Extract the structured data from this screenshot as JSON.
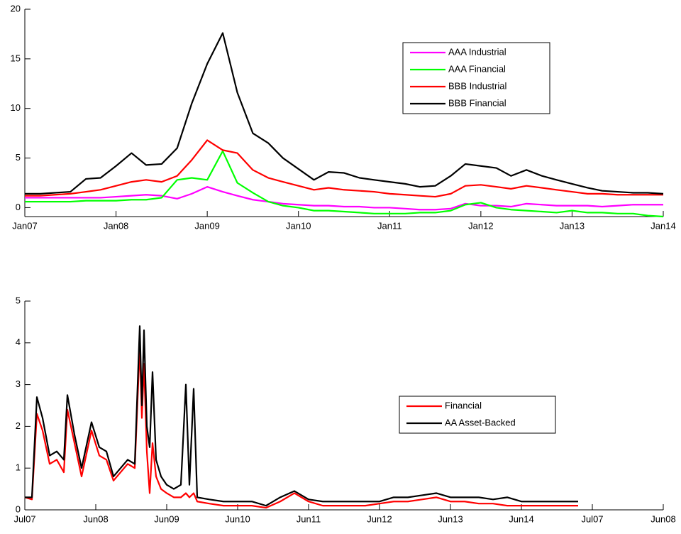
{
  "chart_data": [
    {
      "type": "line",
      "x": [
        2007,
        2007.17,
        2007.33,
        2007.5,
        2007.67,
        2007.83,
        2008,
        2008.17,
        2008.33,
        2008.5,
        2008.67,
        2008.83,
        2009,
        2009.17,
        2009.33,
        2009.5,
        2009.67,
        2009.83,
        2010,
        2010.17,
        2010.33,
        2010.5,
        2010.67,
        2010.83,
        2011,
        2011.17,
        2011.33,
        2011.5,
        2011.67,
        2011.83,
        2012,
        2012.17,
        2012.33,
        2012.5,
        2012.67,
        2012.83,
        2013,
        2013.17,
        2013.33,
        2013.5,
        2013.67,
        2013.83,
        2014
      ],
      "series": [
        {
          "name": "AAA Industrial",
          "color": "#ff00ff",
          "values": [
            1.0,
            1.0,
            1.0,
            1.0,
            1.0,
            1.0,
            1.1,
            1.2,
            1.3,
            1.2,
            0.9,
            1.4,
            2.1,
            1.6,
            1.2,
            0.8,
            0.6,
            0.4,
            0.3,
            0.2,
            0.2,
            0.1,
            0.1,
            0.0,
            0.0,
            -0.1,
            -0.2,
            -0.2,
            -0.1,
            0.4,
            0.2,
            0.2,
            0.1,
            0.4,
            0.3,
            0.2,
            0.2,
            0.2,
            0.1,
            0.2,
            0.3,
            0.3,
            0.3
          ]
        },
        {
          "name": "AAA Financial",
          "color": "#00ff00",
          "values": [
            0.6,
            0.6,
            0.6,
            0.6,
            0.7,
            0.7,
            0.7,
            0.8,
            0.8,
            1.0,
            2.8,
            3.0,
            2.8,
            5.7,
            2.5,
            1.5,
            0.6,
            0.2,
            0.0,
            -0.3,
            -0.3,
            -0.4,
            -0.5,
            -0.6,
            -0.6,
            -0.6,
            -0.5,
            -0.5,
            -0.3,
            0.3,
            0.5,
            0.0,
            -0.2,
            -0.3,
            -0.4,
            -0.5,
            -0.3,
            -0.5,
            -0.5,
            -0.6,
            -0.6,
            -0.8,
            -0.9
          ]
        },
        {
          "name": "BBB Industrial",
          "color": "#ff0000",
          "values": [
            1.2,
            1.2,
            1.3,
            1.4,
            1.6,
            1.8,
            2.2,
            2.6,
            2.8,
            2.6,
            3.2,
            4.8,
            6.8,
            5.8,
            5.5,
            3.8,
            3.0,
            2.6,
            2.2,
            1.8,
            2.0,
            1.8,
            1.7,
            1.6,
            1.4,
            1.3,
            1.2,
            1.1,
            1.4,
            2.2,
            2.3,
            2.1,
            1.9,
            2.2,
            2.0,
            1.8,
            1.6,
            1.4,
            1.4,
            1.3,
            1.3,
            1.3,
            1.3
          ]
        },
        {
          "name": "BBB Financial",
          "color": "#000000",
          "values": [
            1.4,
            1.4,
            1.5,
            1.6,
            2.9,
            3.0,
            4.2,
            5.5,
            4.3,
            4.4,
            6.0,
            10.5,
            14.5,
            17.6,
            11.6,
            7.5,
            6.5,
            5.0,
            3.9,
            2.8,
            3.6,
            3.5,
            3.0,
            2.8,
            2.6,
            2.4,
            2.1,
            2.2,
            3.2,
            4.4,
            4.2,
            4.0,
            3.2,
            3.8,
            3.2,
            2.8,
            2.4,
            2.0,
            1.7,
            1.6,
            1.5,
            1.5,
            1.4
          ]
        }
      ],
      "xlim": [
        2007,
        2014
      ],
      "xticks": [
        {
          "value": 2007,
          "label": "Jan07"
        },
        {
          "value": 2008,
          "label": "Jan08"
        },
        {
          "value": 2009,
          "label": "Jan09"
        },
        {
          "value": 2010,
          "label": "Jan10"
        },
        {
          "value": 2011,
          "label": "Jan11"
        },
        {
          "value": 2012,
          "label": "Jan12"
        },
        {
          "value": 2013,
          "label": "Jan13"
        },
        {
          "value": 2014,
          "label": "Jan14"
        }
      ],
      "ylim": [
        -0.9,
        20
      ],
      "yticks": [
        0,
        5,
        10,
        15,
        20
      ]
    },
    {
      "type": "line",
      "x": [
        2007.5,
        2007.6,
        2007.67,
        2007.75,
        2007.85,
        2007.95,
        2008.05,
        2008.1,
        2008.2,
        2008.3,
        2008.44,
        2008.55,
        2008.65,
        2008.75,
        2008.85,
        2008.95,
        2009.05,
        2009.12,
        2009.15,
        2009.18,
        2009.22,
        2009.26,
        2009.3,
        2009.35,
        2009.42,
        2009.5,
        2009.6,
        2009.7,
        2009.77,
        2009.82,
        2009.88,
        2009.93,
        2010.1,
        2010.3,
        2010.5,
        2010.7,
        2010.9,
        2011.1,
        2011.3,
        2011.5,
        2011.7,
        2011.9,
        2012.1,
        2012.3,
        2012.5,
        2012.7,
        2012.9,
        2013.1,
        2013.3,
        2013.5,
        2013.7,
        2013.9,
        2014.1,
        2014.3,
        2014.5,
        2014.7,
        2014.9,
        2015.1,
        2015.3
      ],
      "series": [
        {
          "name": "Financial",
          "color": "#ff0000",
          "values": [
            0.3,
            0.25,
            2.3,
            1.9,
            1.1,
            1.2,
            0.9,
            2.4,
            1.6,
            0.8,
            1.9,
            1.3,
            1.2,
            0.7,
            0.9,
            1.1,
            1.0,
            3.9,
            2.2,
            3.5,
            1.4,
            0.4,
            1.6,
            0.8,
            0.5,
            0.4,
            0.3,
            0.3,
            0.4,
            0.3,
            0.4,
            0.2,
            0.15,
            0.1,
            0.1,
            0.1,
            0.05,
            0.2,
            0.4,
            0.2,
            0.1,
            0.1,
            0.1,
            0.1,
            0.15,
            0.2,
            0.2,
            0.25,
            0.3,
            0.2,
            0.2,
            0.15,
            0.15,
            0.1,
            0.1,
            0.1,
            0.1,
            0.1,
            0.1
          ]
        },
        {
          "name": "AA Asset-Backed",
          "color": "#000000",
          "values": [
            0.3,
            0.3,
            2.7,
            2.2,
            1.3,
            1.4,
            1.2,
            2.75,
            1.8,
            1.0,
            2.1,
            1.5,
            1.4,
            0.8,
            1.0,
            1.2,
            1.1,
            4.4,
            2.5,
            4.3,
            2.0,
            1.5,
            3.3,
            1.2,
            0.8,
            0.6,
            0.5,
            0.6,
            3.0,
            0.6,
            2.9,
            0.3,
            0.25,
            0.2,
            0.2,
            0.2,
            0.1,
            0.3,
            0.45,
            0.25,
            0.2,
            0.2,
            0.2,
            0.2,
            0.2,
            0.3,
            0.3,
            0.35,
            0.4,
            0.3,
            0.3,
            0.3,
            0.25,
            0.3,
            0.2,
            0.2,
            0.2,
            0.2,
            0.2
          ]
        }
      ],
      "xlim": [
        2007.5,
        2016.5
      ],
      "xticks": [
        {
          "value": 2007.5,
          "label": "Jul07"
        },
        {
          "value": 2008.5,
          "label": "Jun08"
        },
        {
          "value": 2009.5,
          "label": "Jun09"
        },
        {
          "value": 2010.5,
          "label": "Jun10"
        },
        {
          "value": 2011.5,
          "label": "Jun11"
        },
        {
          "value": 2012.5,
          "label": "Jun12"
        },
        {
          "value": 2013.5,
          "label": "Jun13"
        },
        {
          "value": 2014.5,
          "label": "Jun14"
        },
        {
          "value": 2015.5,
          "label": "Jul07"
        },
        {
          "value": 2016.5,
          "label": "Jun08"
        }
      ],
      "ylim": [
        0,
        5
      ],
      "yticks": [
        0,
        1,
        2,
        3,
        4,
        5
      ]
    }
  ]
}
